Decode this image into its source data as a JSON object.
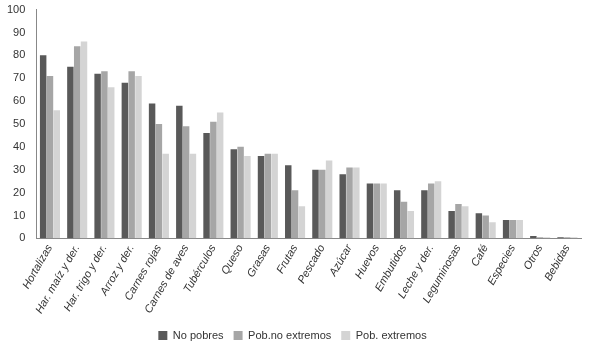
{
  "chart_data": {
    "type": "bar",
    "categories": [
      "Hortalizas",
      "Har. maíz y der.",
      "Har. trigo y der.",
      "Arroz y der.",
      "Carnes rojas",
      "Carnes de aves",
      "Tubérculos",
      "Queso",
      "Grasas",
      "Frutas",
      "Pescado",
      "Azúcar",
      "Huevos",
      "Embutidos",
      "Leche y der.",
      "Leguminosas",
      "Café",
      "Especies",
      "Otros",
      "Bebidas"
    ],
    "series": [
      {
        "name": "No pobres",
        "color": "#595959",
        "values": [
          80,
          75,
          72,
          68,
          59,
          58,
          46,
          39,
          36,
          32,
          30,
          28,
          24,
          21,
          21,
          12,
          11,
          8,
          1,
          0.5
        ]
      },
      {
        "name": "Pob.no extremos",
        "color": "#a6a6a6",
        "values": [
          71,
          84,
          73,
          73,
          50,
          49,
          51,
          40,
          37,
          21,
          30,
          31,
          24,
          16,
          24,
          15,
          10,
          8,
          0.5,
          0.5
        ]
      },
      {
        "name": "Pob. extremos",
        "color": "#d4d4d4",
        "values": [
          56,
          86,
          66,
          71,
          37,
          37,
          55,
          36,
          37,
          14,
          34,
          31,
          24,
          12,
          25,
          14,
          7,
          8,
          0.5,
          0.5
        ]
      }
    ],
    "ylim": [
      0,
      100
    ],
    "yticks": [
      0,
      10,
      20,
      30,
      40,
      50,
      60,
      70,
      80,
      90,
      100
    ],
    "grid": false,
    "legend": "bottom"
  }
}
